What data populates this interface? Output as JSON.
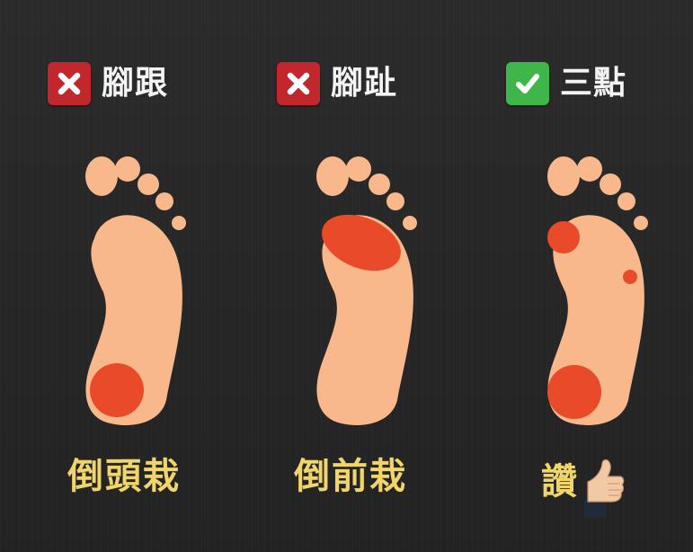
{
  "colors": {
    "background": "#262626",
    "foot": "#f8b88b",
    "pressure": "#e84a2a",
    "cross": "#c1272d",
    "check": "#3fb64a",
    "header_text": "#f4f4f4",
    "caption_text": "#f0d66a"
  },
  "panels": [
    {
      "mark_icon": "cross-icon",
      "header": "腳跟",
      "caption": "倒頭栽"
    },
    {
      "mark_icon": "cross-icon",
      "header": "腳趾",
      "caption": "倒前栽"
    },
    {
      "mark_icon": "check-icon",
      "header": "三點",
      "caption": "讚",
      "caption_icon": "thumbs-up-icon"
    }
  ]
}
